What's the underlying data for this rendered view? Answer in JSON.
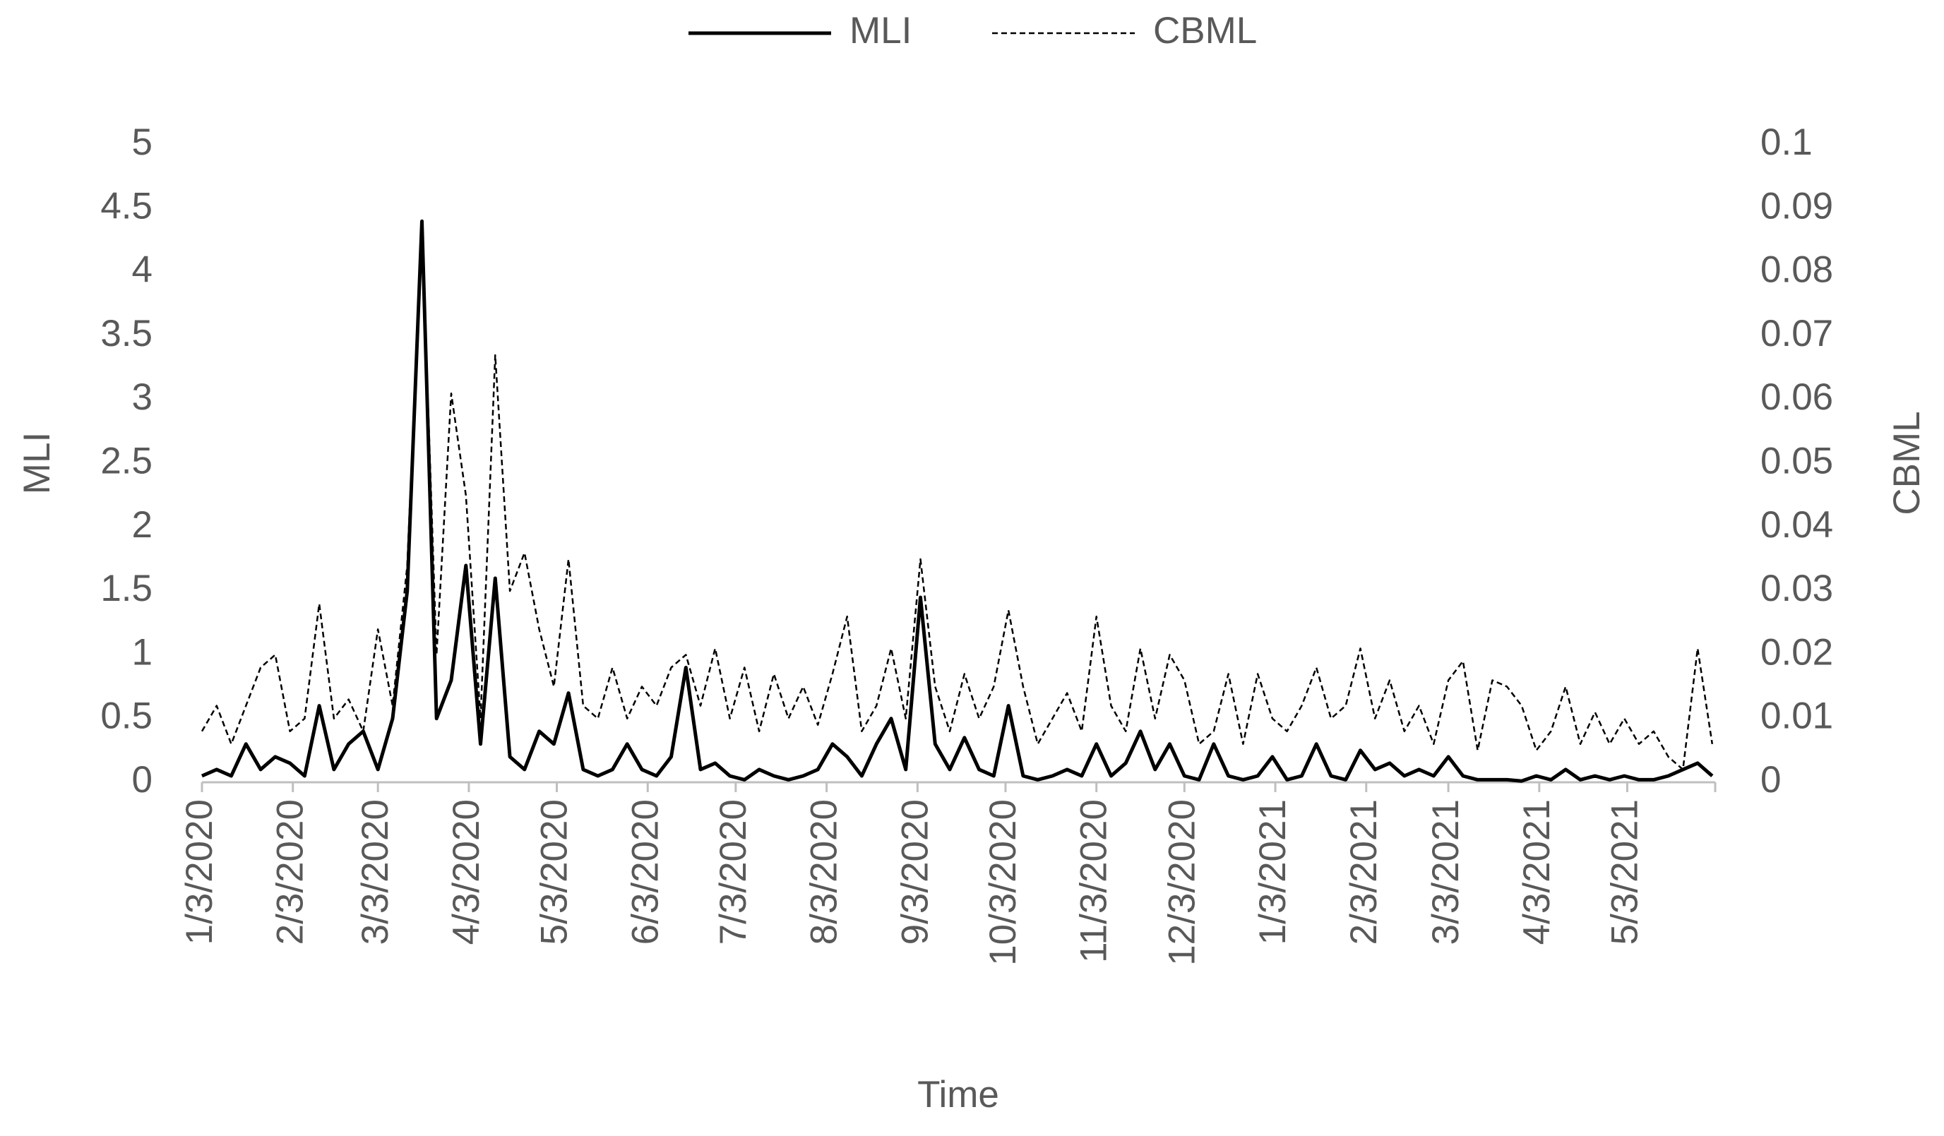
{
  "chart_data": {
    "type": "line",
    "x_label": "Time",
    "y_label": "MLI",
    "y2_label": "CBML",
    "x": [
      "2020-01-03",
      "2020-01-08",
      "2020-01-13",
      "2020-01-18",
      "2020-01-23",
      "2020-01-28",
      "2020-02-02",
      "2020-02-07",
      "2020-02-12",
      "2020-02-17",
      "2020-02-22",
      "2020-02-27",
      "2020-03-03",
      "2020-03-08",
      "2020-03-13",
      "2020-03-18",
      "2020-03-23",
      "2020-03-28",
      "2020-04-02",
      "2020-04-07",
      "2020-04-12",
      "2020-04-17",
      "2020-04-22",
      "2020-04-27",
      "2020-05-02",
      "2020-05-07",
      "2020-05-12",
      "2020-05-17",
      "2020-05-22",
      "2020-05-27",
      "2020-06-01",
      "2020-06-06",
      "2020-06-11",
      "2020-06-16",
      "2020-06-21",
      "2020-06-26",
      "2020-07-01",
      "2020-07-06",
      "2020-07-11",
      "2020-07-16",
      "2020-07-21",
      "2020-07-26",
      "2020-07-31",
      "2020-08-05",
      "2020-08-10",
      "2020-08-15",
      "2020-08-20",
      "2020-08-25",
      "2020-08-30",
      "2020-09-04",
      "2020-09-09",
      "2020-09-14",
      "2020-09-19",
      "2020-09-24",
      "2020-09-29",
      "2020-10-04",
      "2020-10-09",
      "2020-10-14",
      "2020-10-19",
      "2020-10-24",
      "2020-10-29",
      "2020-11-03",
      "2020-11-08",
      "2020-11-13",
      "2020-11-18",
      "2020-11-23",
      "2020-11-28",
      "2020-12-03",
      "2020-12-08",
      "2020-12-13",
      "2020-12-18",
      "2020-12-23",
      "2020-12-28",
      "2021-01-02",
      "2021-01-07",
      "2021-01-12",
      "2021-01-17",
      "2021-01-22",
      "2021-01-27",
      "2021-02-01",
      "2021-02-06",
      "2021-02-11",
      "2021-02-16",
      "2021-02-21",
      "2021-02-26",
      "2021-03-03",
      "2021-03-08",
      "2021-03-13",
      "2021-03-18",
      "2021-03-23",
      "2021-03-28",
      "2021-04-02",
      "2021-04-07",
      "2021-04-12",
      "2021-04-17",
      "2021-04-22",
      "2021-04-27",
      "2021-05-02",
      "2021-05-07",
      "2021-05-12",
      "2021-05-17",
      "2021-05-22",
      "2021-05-27",
      "2021-06-01"
    ],
    "series": [
      {
        "name": "MLI",
        "color": "#000000",
        "style": "solid",
        "axis": "y",
        "values": [
          0.05,
          0.1,
          0.05,
          0.3,
          0.1,
          0.2,
          0.15,
          0.05,
          0.6,
          0.1,
          0.3,
          0.4,
          0.1,
          0.5,
          1.5,
          4.4,
          0.5,
          0.8,
          1.7,
          0.3,
          1.6,
          0.2,
          0.1,
          0.4,
          0.3,
          0.7,
          0.1,
          0.05,
          0.1,
          0.3,
          0.1,
          0.05,
          0.2,
          0.9,
          0.1,
          0.15,
          0.05,
          0.02,
          0.1,
          0.05,
          0.02,
          0.05,
          0.1,
          0.3,
          0.2,
          0.05,
          0.3,
          0.5,
          0.1,
          1.45,
          0.3,
          0.1,
          0.35,
          0.1,
          0.05,
          0.6,
          0.05,
          0.02,
          0.05,
          0.1,
          0.05,
          0.3,
          0.05,
          0.15,
          0.4,
          0.1,
          0.3,
          0.05,
          0.02,
          0.3,
          0.05,
          0.02,
          0.05,
          0.2,
          0.02,
          0.05,
          0.3,
          0.05,
          0.02,
          0.25,
          0.1,
          0.15,
          0.05,
          0.1,
          0.05,
          0.2,
          0.05,
          0.02,
          0.02,
          0.02,
          0.01,
          0.05,
          0.02,
          0.1,
          0.02,
          0.05,
          0.02,
          0.05,
          0.02,
          0.02,
          0.05,
          0.1,
          0.15,
          0.05
        ]
      },
      {
        "name": "CBML",
        "color": "#000000",
        "style": "dashed",
        "axis": "y2",
        "values": [
          0.008,
          0.012,
          0.006,
          0.012,
          0.018,
          0.02,
          0.008,
          0.01,
          0.028,
          0.01,
          0.013,
          0.008,
          0.024,
          0.012,
          0.034,
          0.088,
          0.02,
          0.061,
          0.045,
          0.01,
          0.067,
          0.03,
          0.036,
          0.024,
          0.015,
          0.035,
          0.012,
          0.01,
          0.018,
          0.01,
          0.015,
          0.012,
          0.018,
          0.02,
          0.012,
          0.021,
          0.01,
          0.018,
          0.008,
          0.017,
          0.01,
          0.015,
          0.009,
          0.017,
          0.026,
          0.008,
          0.012,
          0.021,
          0.01,
          0.035,
          0.015,
          0.008,
          0.017,
          0.01,
          0.015,
          0.027,
          0.015,
          0.006,
          0.01,
          0.014,
          0.008,
          0.026,
          0.012,
          0.008,
          0.021,
          0.01,
          0.02,
          0.016,
          0.006,
          0.008,
          0.017,
          0.006,
          0.017,
          0.01,
          0.008,
          0.012,
          0.018,
          0.01,
          0.012,
          0.021,
          0.01,
          0.016,
          0.008,
          0.012,
          0.006,
          0.016,
          0.019,
          0.005,
          0.016,
          0.015,
          0.012,
          0.005,
          0.008,
          0.015,
          0.006,
          0.011,
          0.006,
          0.01,
          0.006,
          0.008,
          0.004,
          0.002,
          0.021,
          0.006
        ]
      }
    ],
    "xlim": [
      "2020-01-03",
      "2021-06-02"
    ],
    "xticks": [
      {
        "value": "2020-01-03",
        "label": "1/3/2020"
      },
      {
        "value": "2020-02-03",
        "label": "2/3/2020"
      },
      {
        "value": "2020-03-03",
        "label": "3/3/2020"
      },
      {
        "value": "2020-04-03",
        "label": "4/3/2020"
      },
      {
        "value": "2020-05-03",
        "label": "5/3/2020"
      },
      {
        "value": "2020-06-03",
        "label": "6/3/2020"
      },
      {
        "value": "2020-07-03",
        "label": "7/3/2020"
      },
      {
        "value": "2020-08-03",
        "label": "8/3/2020"
      },
      {
        "value": "2020-09-03",
        "label": "9/3/2020"
      },
      {
        "value": "2020-10-03",
        "label": "10/3/2020"
      },
      {
        "value": "2020-11-03",
        "label": "11/3/2020"
      },
      {
        "value": "2020-12-03",
        "label": "12/3/2020"
      },
      {
        "value": "2021-01-03",
        "label": "1/3/2021"
      },
      {
        "value": "2021-02-03",
        "label": "2/3/2021"
      },
      {
        "value": "2021-03-03",
        "label": "3/3/2021"
      },
      {
        "value": "2021-04-03",
        "label": "4/3/2021"
      },
      {
        "value": "2021-05-03",
        "label": "5/3/2021"
      }
    ],
    "ylim": [
      0,
      5
    ],
    "yticks": [
      0,
      0.5,
      1,
      1.5,
      2,
      2.5,
      3,
      3.5,
      4,
      4.5,
      5
    ],
    "y2lim": [
      0,
      0.1
    ],
    "y2ticks": [
      0,
      0.01,
      0.02,
      0.03,
      0.04,
      0.05,
      0.06,
      0.07,
      0.08,
      0.09,
      0.1
    ],
    "grid": false,
    "legend": "top"
  }
}
